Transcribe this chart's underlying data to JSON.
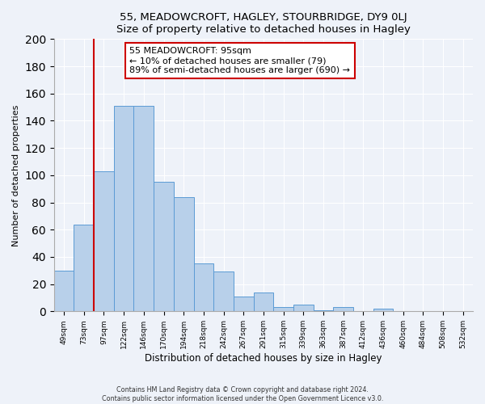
{
  "title": "55, MEADOWCROFT, HAGLEY, STOURBRIDGE, DY9 0LJ",
  "subtitle": "Size of property relative to detached houses in Hagley",
  "xlabel": "Distribution of detached houses by size in Hagley",
  "ylabel": "Number of detached properties",
  "bar_labels": [
    "49sqm",
    "73sqm",
    "97sqm",
    "122sqm",
    "146sqm",
    "170sqm",
    "194sqm",
    "218sqm",
    "242sqm",
    "267sqm",
    "291sqm",
    "315sqm",
    "339sqm",
    "363sqm",
    "387sqm",
    "412sqm",
    "436sqm",
    "460sqm",
    "484sqm",
    "508sqm",
    "532sqm"
  ],
  "bar_values": [
    30,
    64,
    103,
    151,
    151,
    95,
    84,
    35,
    29,
    11,
    14,
    3,
    5,
    1,
    3,
    0,
    2,
    0,
    0,
    0,
    0
  ],
  "bar_color": "#b8d0ea",
  "bar_edge_color": "#5b9bd5",
  "ylim": [
    0,
    200
  ],
  "yticks": [
    0,
    20,
    40,
    60,
    80,
    100,
    120,
    140,
    160,
    180,
    200
  ],
  "property_line_index": 2,
  "property_line_color": "#cc0000",
  "annotation_title": "55 MEADOWCROFT: 95sqm",
  "annotation_line1": "← 10% of detached houses are smaller (79)",
  "annotation_line2": "89% of semi-detached houses are larger (690) →",
  "footer1": "Contains HM Land Registry data © Crown copyright and database right 2024.",
  "footer2": "Contains public sector information licensed under the Open Government Licence v3.0.",
  "background_color": "#eef2f9",
  "plot_background": "#eef2f9",
  "grid_color": "#ffffff"
}
